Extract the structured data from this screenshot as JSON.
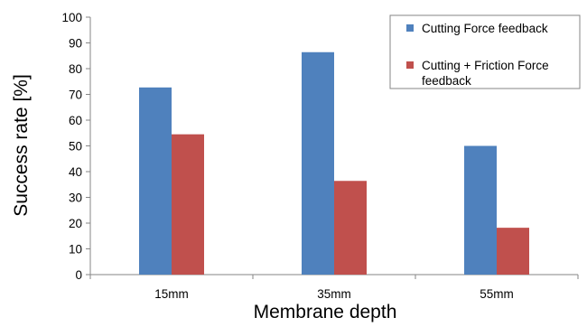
{
  "chart_data": {
    "type": "bar",
    "categories": [
      "15mm",
      "35mm",
      "55mm"
    ],
    "series": [
      {
        "name": "Cutting Force feedback",
        "values": [
          72.7,
          86.4,
          50.0
        ],
        "color": "#4f81bd"
      },
      {
        "name": "Cutting + Friction Force feedback",
        "values": [
          54.5,
          36.4,
          18.2
        ],
        "color": "#c0504d"
      }
    ],
    "xlabel": "Membrane depth",
    "ylabel": "Success rate [%]",
    "ylim": [
      0,
      100
    ],
    "yticks": [
      "0",
      "10",
      "20",
      "30",
      "40",
      "50",
      "60",
      "70",
      "80",
      "90",
      "100"
    ],
    "grid": false,
    "legend_position": "top-right"
  }
}
